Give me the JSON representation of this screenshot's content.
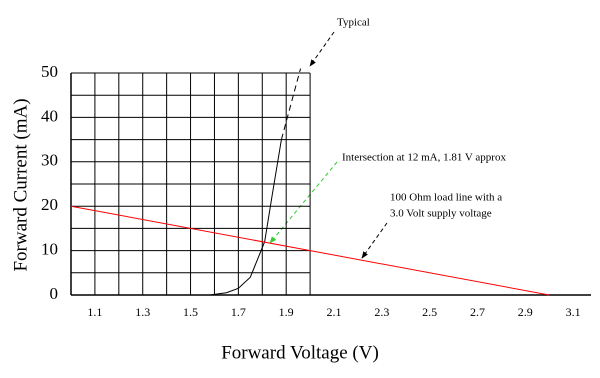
{
  "chart_data": {
    "type": "line",
    "xlabel": "Forward Voltage (V)",
    "ylabel": "Forward Current (mA)",
    "xlim": [
      1.0,
      3.2
    ],
    "ylim": [
      0,
      50
    ],
    "xticks": [
      1.1,
      1.3,
      1.5,
      1.7,
      1.9,
      2.1,
      2.3,
      2.5,
      2.7,
      2.9,
      3.1
    ],
    "yticks": [
      0,
      10,
      20,
      30,
      40,
      50
    ],
    "grid": true,
    "grid_x": [
      1.0,
      1.1,
      1.2,
      1.3,
      1.4,
      1.5,
      1.6,
      1.7,
      1.8,
      1.9,
      2.0
    ],
    "grid_y": [
      0,
      5,
      10,
      15,
      20,
      25,
      30,
      35,
      40,
      45,
      50
    ],
    "series": [
      {
        "color": "#000000",
        "dashed": false,
        "x": [
          1.58,
          1.65,
          1.7,
          1.75,
          1.78,
          1.81,
          1.84,
          1.88
        ],
        "values": [
          0,
          0.5,
          1.5,
          4,
          8,
          12,
          22,
          35
        ]
      },
      {
        "color": "#000000",
        "dashed": true,
        "x": [
          1.88,
          1.92,
          1.96
        ],
        "values": [
          35,
          43,
          51
        ]
      },
      {
        "color": "#ff0000",
        "dashed": false,
        "x": [
          1.0,
          3.0
        ],
        "values": [
          20,
          0
        ]
      }
    ],
    "annotations": [
      {
        "text": "Typical"
      },
      {
        "text": "Intersection at 12 mA, 1.81 V approx"
      },
      {
        "lines": [
          "100 Ohm load line with a",
          "3.0 Volt supply voltage"
        ]
      }
    ]
  }
}
